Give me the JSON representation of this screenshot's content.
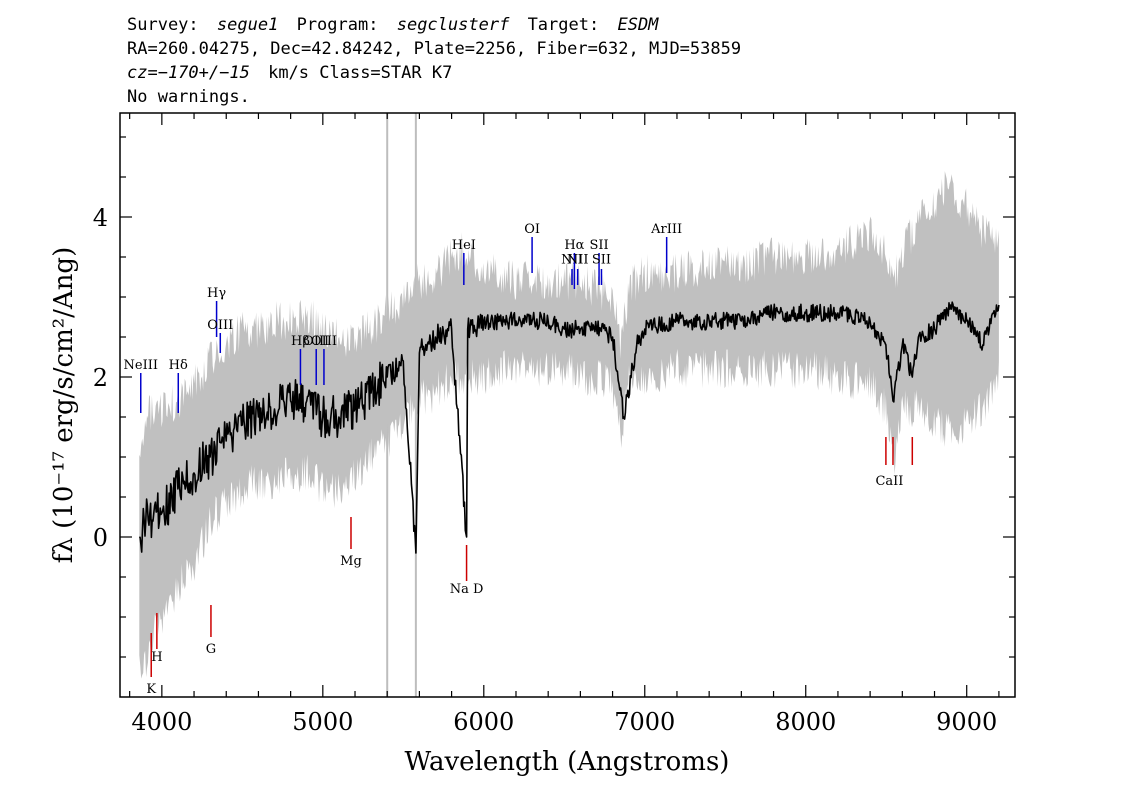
{
  "header": {
    "line1": {
      "survey_label": "Survey:",
      "survey": "segue1",
      "program_label": "Program:",
      "program": "segclusterf",
      "target_label": "Target:",
      "target": "ESDM"
    },
    "line2": "RA=260.04275, Dec=42.84242, Plate=2256, Fiber=632, MJD=53859",
    "line3": {
      "cz": "cz=−170+/−15",
      "units_class": "km/s Class=STAR K7"
    },
    "line4": "No warnings."
  },
  "chart_data": {
    "type": "line",
    "xlabel": "Wavelength (Angstroms)",
    "ylabel": "fλ (10⁻¹⁷ erg/s/cm²/Ang)",
    "xlim": [
      3740,
      9300
    ],
    "ylim": [
      -2.0,
      5.3
    ],
    "x_ticks": [
      4000,
      5000,
      6000,
      7000,
      8000,
      9000
    ],
    "y_ticks": [
      0,
      2,
      4
    ],
    "grid": false,
    "vertical_markers": [
      5400,
      5578
    ],
    "series": [
      {
        "role": "error-band",
        "color": "#c0c0c0",
        "x": [
          3860,
          3900,
          3950,
          4000,
          4100,
          4200,
          4300,
          4400,
          4500,
          4600,
          4700,
          4800,
          4900,
          5000,
          5100,
          5200,
          5300,
          5400,
          5500,
          5600,
          5700,
          5800,
          5900,
          6000,
          6100,
          6200,
          6300,
          6400,
          6500,
          6600,
          6700,
          6800,
          6850,
          6900,
          7000,
          7200,
          7400,
          7600,
          7800,
          8000,
          8200,
          8400,
          8500,
          8550,
          8600,
          8700,
          8800,
          8900,
          9000,
          9100,
          9200
        ],
        "upper": [
          1.2,
          1.5,
          1.6,
          1.6,
          1.7,
          1.9,
          2.2,
          2.4,
          2.6,
          2.6,
          2.7,
          2.7,
          2.8,
          2.6,
          2.5,
          2.5,
          2.6,
          2.8,
          3.0,
          3.2,
          3.3,
          3.5,
          3.6,
          3.3,
          3.3,
          3.2,
          3.2,
          3.2,
          3.2,
          3.2,
          3.1,
          3.0,
          2.4,
          3.1,
          3.3,
          3.3,
          3.4,
          3.4,
          3.5,
          3.5,
          3.6,
          3.8,
          3.6,
          3.2,
          3.6,
          3.9,
          4.2,
          4.4,
          4.1,
          3.8,
          3.6
        ],
        "lower": [
          -1.5,
          -1.6,
          -1.2,
          -1.0,
          -0.6,
          -0.4,
          0.2,
          0.4,
          0.6,
          0.7,
          0.7,
          0.8,
          0.8,
          0.6,
          0.6,
          0.8,
          1.0,
          1.2,
          1.5,
          1.7,
          1.8,
          2.0,
          2.0,
          2.0,
          2.1,
          2.1,
          2.1,
          2.1,
          2.1,
          2.0,
          2.0,
          1.9,
          1.3,
          1.9,
          2.0,
          2.1,
          2.1,
          2.1,
          2.1,
          2.1,
          2.0,
          1.9,
          1.6,
          0.9,
          1.6,
          1.6,
          1.4,
          1.3,
          1.4,
          1.6,
          2.0
        ]
      },
      {
        "role": "flux",
        "color": "#000000",
        "x": [
          3860,
          3900,
          3950,
          4000,
          4100,
          4200,
          4300,
          4400,
          4500,
          4600,
          4700,
          4800,
          4900,
          5000,
          5100,
          5200,
          5300,
          5400,
          5500,
          5578,
          5600,
          5700,
          5800,
          5893,
          5900,
          6000,
          6100,
          6200,
          6300,
          6400,
          6500,
          6600,
          6700,
          6800,
          6870,
          6950,
          7000,
          7200,
          7400,
          7600,
          7800,
          8000,
          8200,
          8400,
          8498,
          8542,
          8600,
          8662,
          8700,
          8800,
          8900,
          9000,
          9100,
          9200
        ],
        "y": [
          0.0,
          0.2,
          0.3,
          0.3,
          0.6,
          0.8,
          1.0,
          1.2,
          1.4,
          1.5,
          1.6,
          1.7,
          1.7,
          1.5,
          1.5,
          1.6,
          1.8,
          2.0,
          2.2,
          -0.2,
          2.3,
          2.5,
          2.6,
          0.0,
          2.6,
          2.7,
          2.7,
          2.7,
          2.7,
          2.7,
          2.6,
          2.6,
          2.6,
          2.5,
          1.5,
          2.4,
          2.6,
          2.7,
          2.7,
          2.7,
          2.8,
          2.8,
          2.8,
          2.7,
          2.4,
          1.7,
          2.4,
          2.0,
          2.5,
          2.6,
          2.9,
          2.7,
          2.4,
          2.9
        ]
      }
    ],
    "line_markers": [
      {
        "label": "NeIII",
        "x": 3869,
        "y1": 1.55,
        "y2": 2.05,
        "color": "#0000cc",
        "label_y": 2.1
      },
      {
        "label": "Hδ",
        "x": 4102,
        "y1": 1.55,
        "y2": 2.05,
        "color": "#0000cc",
        "label_y": 2.1
      },
      {
        "label": "Hγ",
        "x": 4340,
        "y1": 2.5,
        "y2": 2.95,
        "color": "#0000cc",
        "label_y": 3.0
      },
      {
        "label": "OIII",
        "x": 4363,
        "y1": 2.3,
        "y2": 2.55,
        "color": "#0000cc",
        "label_y": 2.6
      },
      {
        "label": "Hβ",
        "x": 4861,
        "y1": 1.9,
        "y2": 2.35,
        "color": "#0000cc",
        "label_y": 2.4
      },
      {
        "label": "OIII",
        "x": 4959,
        "y1": 1.9,
        "y2": 2.35,
        "color": "#0000cc",
        "label_y": 2.4
      },
      {
        "label": "OIII",
        "x": 5007,
        "y1": 1.9,
        "y2": 2.35,
        "color": "#0000cc",
        "label_y": 2.4
      },
      {
        "label": "HeI",
        "x": 5876,
        "y1": 3.15,
        "y2": 3.55,
        "color": "#0000cc",
        "label_y": 3.6
      },
      {
        "label": "OI",
        "x": 6300,
        "y1": 3.3,
        "y2": 3.75,
        "color": "#0000cc",
        "label_y": 3.8
      },
      {
        "label": "NII",
        "x": 6548,
        "y1": 3.15,
        "y2": 3.35,
        "color": "#0000cc",
        "label_y": 3.42
      },
      {
        "label": "Hα",
        "x": 6563,
        "y1": 3.1,
        "y2": 3.55,
        "color": "#0000cc",
        "label_y": 3.6
      },
      {
        "label": "NII",
        "x": 6583,
        "y1": 3.15,
        "y2": 3.35,
        "color": "#0000cc",
        "label_y": 3.42
      },
      {
        "label": "SII",
        "x": 6716,
        "y1": 3.15,
        "y2": 3.55,
        "color": "#0000cc",
        "label_y": 3.6
      },
      {
        "label": "SII",
        "x": 6731,
        "y1": 3.15,
        "y2": 3.35,
        "color": "#0000cc",
        "label_y": 3.42
      },
      {
        "label": "ArIII",
        "x": 7136,
        "y1": 3.3,
        "y2": 3.75,
        "color": "#0000cc",
        "label_y": 3.8
      },
      {
        "label": "K",
        "x": 3934,
        "y1": -1.75,
        "y2": -1.2,
        "color": "#cc0000",
        "label_y": -1.95
      },
      {
        "label": "H",
        "x": 3969,
        "y1": -1.4,
        "y2": -0.95,
        "color": "#cc0000",
        "label_y": -1.55
      },
      {
        "label": "G",
        "x": 4305,
        "y1": -1.25,
        "y2": -0.85,
        "color": "#cc0000",
        "label_y": -1.45
      },
      {
        "label": "Mg",
        "x": 5175,
        "y1": -0.15,
        "y2": 0.25,
        "color": "#cc0000",
        "label_y": -0.35
      },
      {
        "label": "Na D",
        "x": 5893,
        "y1": -0.55,
        "y2": -0.1,
        "color": "#cc0000",
        "label_y": -0.7
      },
      {
        "label": "CaII",
        "x": 8498,
        "y1": 0.9,
        "y2": 1.25,
        "color": "#cc0000",
        "label_y": 0.65
      },
      {
        "label": "CaII",
        "x": 8542,
        "y1": 0.9,
        "y2": 1.25,
        "color": "#cc0000",
        "label_y": 0.65
      },
      {
        "label": "CaII",
        "x": 8662,
        "y1": 0.9,
        "y2": 1.25,
        "color": "#cc0000",
        "label_y": 0.65
      }
    ]
  }
}
